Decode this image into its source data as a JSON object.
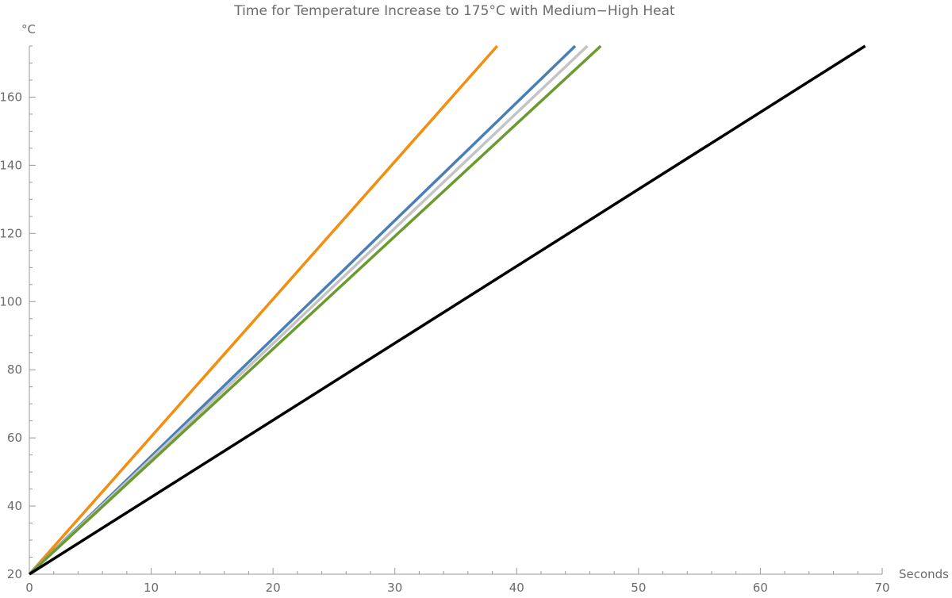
{
  "chart_data": {
    "type": "line",
    "title": "Time for Temperature Increase to 175°C with Medium−High Heat",
    "xlabel": "Seconds",
    "ylabel": "°C",
    "xlim": [
      0,
      70
    ],
    "ylim": [
      20,
      175
    ],
    "x_ticks": [
      0,
      10,
      20,
      30,
      40,
      50,
      60,
      70
    ],
    "y_ticks": [
      20,
      40,
      60,
      80,
      100,
      120,
      140,
      160
    ],
    "x_minor_step": 2,
    "y_minor_step": 5,
    "grid": false,
    "legend": "none",
    "series": [
      {
        "color": "#f28e10",
        "points": [
          [
            0,
            20
          ],
          [
            38.4,
            175
          ]
        ]
      },
      {
        "color": "#4a7fb5",
        "points": [
          [
            0,
            20
          ],
          [
            44.8,
            175
          ]
        ]
      },
      {
        "color": "#c4c4c4",
        "points": [
          [
            0,
            20
          ],
          [
            45.8,
            175
          ]
        ]
      },
      {
        "color": "#6b9a2e",
        "points": [
          [
            0,
            20
          ],
          [
            46.9,
            175
          ]
        ]
      },
      {
        "color": "#000000",
        "points": [
          [
            0,
            20
          ],
          [
            68.6,
            175
          ]
        ]
      }
    ]
  }
}
